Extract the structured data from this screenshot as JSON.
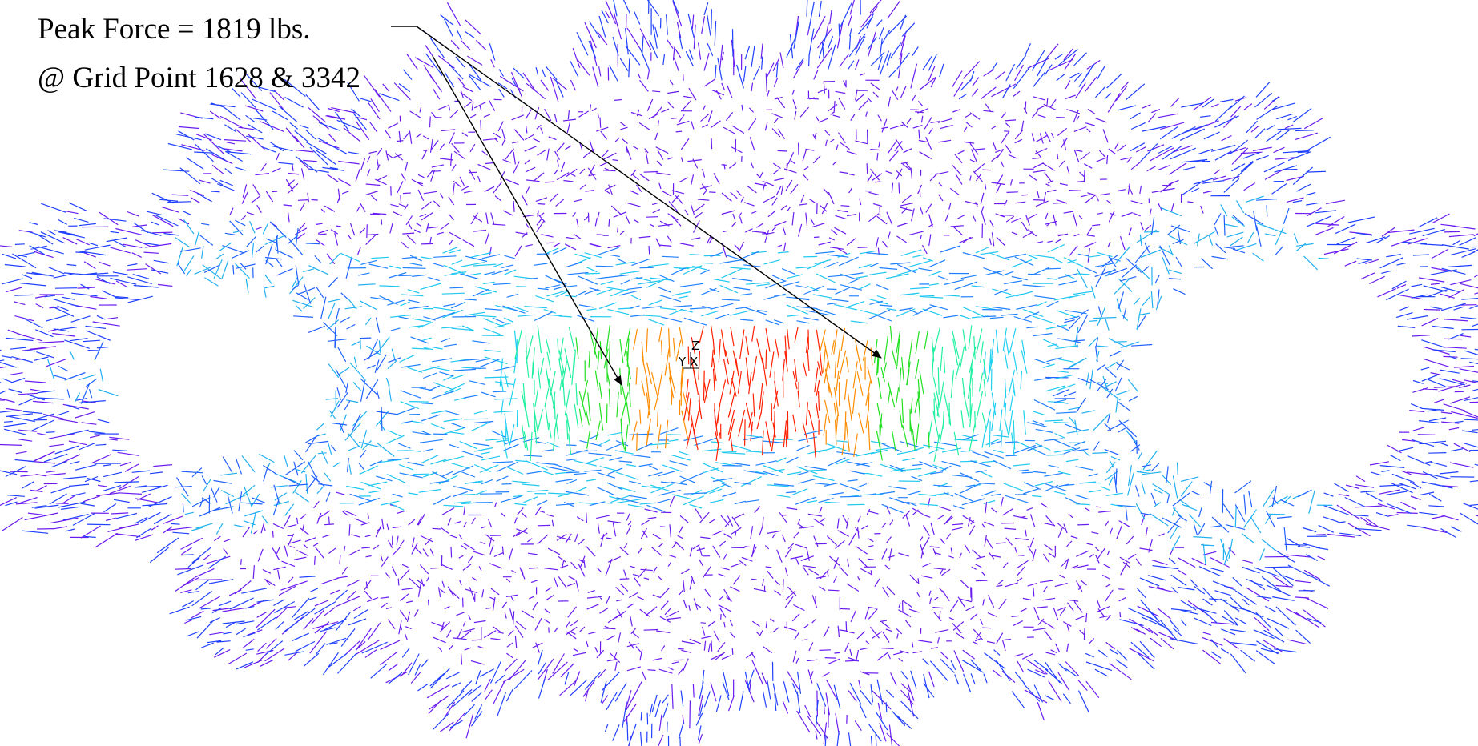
{
  "annotation": {
    "line1": "Peak Force = 1819 lbs.",
    "line2": "@ Grid Point 1628 & 3342"
  },
  "triad": {
    "z": "Z",
    "y": "Y",
    "x": "X"
  }
}
